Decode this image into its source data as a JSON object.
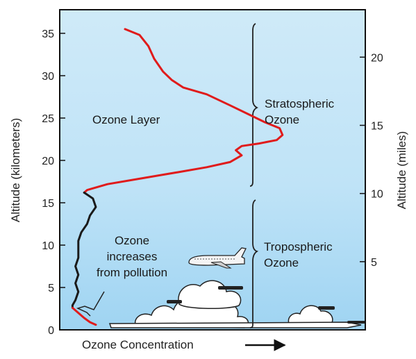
{
  "chart_data": {
    "type": "line",
    "ylabel_left": "Altitude (kilometers)",
    "ylabel_right": "Altitude (miles)",
    "xlabel": "Ozone Concentration",
    "ylim_km": [
      0,
      36.5
    ],
    "yticks_km": [
      0,
      5,
      10,
      15,
      20,
      25,
      30,
      35
    ],
    "yticks_miles": [
      5,
      10,
      15,
      20
    ],
    "grid": false,
    "background": "sky-gradient",
    "series": [
      {
        "color": "#e01b1b",
        "points": [
          [
            0.2,
            35.5
          ],
          [
            0.25,
            34.8
          ],
          [
            0.28,
            33.5
          ],
          [
            0.3,
            32.0
          ],
          [
            0.33,
            30.5
          ],
          [
            0.36,
            29.5
          ],
          [
            0.4,
            28.6
          ],
          [
            0.48,
            27.8
          ],
          [
            0.56,
            26.5
          ],
          [
            0.62,
            25.5
          ],
          [
            0.68,
            24.5
          ],
          [
            0.73,
            23.8
          ],
          [
            0.74,
            23.0
          ],
          [
            0.72,
            22.4
          ],
          [
            0.66,
            22.0
          ],
          [
            0.6,
            21.7
          ],
          [
            0.58,
            21.2
          ],
          [
            0.6,
            20.6
          ],
          [
            0.56,
            19.8
          ],
          [
            0.48,
            19.2
          ],
          [
            0.38,
            18.6
          ],
          [
            0.26,
            17.9
          ],
          [
            0.14,
            17.2
          ],
          [
            0.07,
            16.5
          ],
          [
            0.06,
            16.2
          ]
        ]
      },
      {
        "color": "#1a1a1a",
        "points": [
          [
            0.06,
            16.2
          ],
          [
            0.09,
            15.5
          ],
          [
            0.1,
            14.5
          ],
          [
            0.08,
            13.5
          ],
          [
            0.07,
            12.5
          ],
          [
            0.05,
            11.5
          ],
          [
            0.04,
            10.5
          ],
          [
            0.04,
            9.5
          ],
          [
            0.04,
            8.5
          ],
          [
            0.03,
            7.5
          ],
          [
            0.04,
            6.5
          ],
          [
            0.03,
            5.5
          ],
          [
            0.04,
            4.5
          ],
          [
            0.03,
            3.5
          ],
          [
            0.02,
            2.9
          ],
          [
            0.02,
            2.6
          ]
        ]
      },
      {
        "color": "#e01b1b",
        "points": [
          [
            0.02,
            2.6
          ],
          [
            0.04,
            2.0
          ],
          [
            0.06,
            1.4
          ],
          [
            0.08,
            0.9
          ],
          [
            0.1,
            0.6
          ]
        ]
      }
    ],
    "annotations": {
      "ozone_layer": "Ozone Layer",
      "stratospheric_1": "Stratospheric",
      "stratospheric_2": "Ozone",
      "tropospheric_1": "Tropospheric",
      "tropospheric_2": "Ozone",
      "pollution_1": "Ozone",
      "pollution_2": "increases",
      "pollution_3": "from pollution"
    }
  }
}
